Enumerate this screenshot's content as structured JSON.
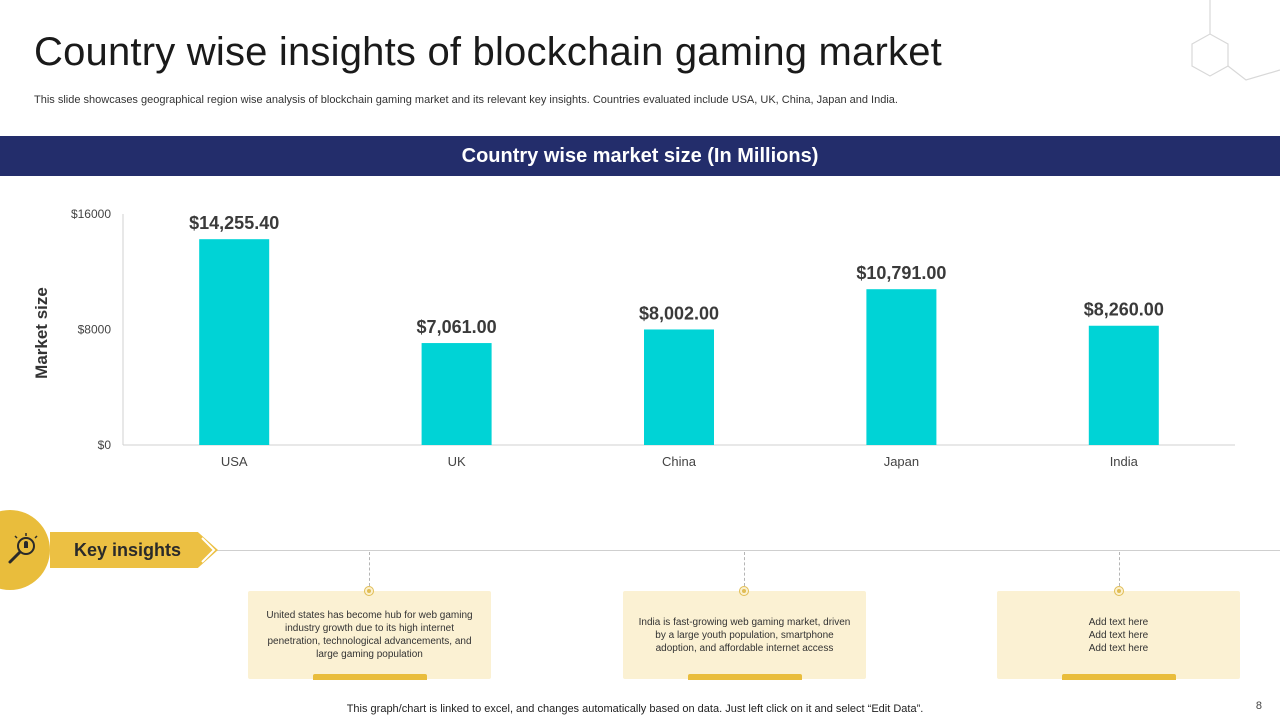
{
  "slide": {
    "title": "Country wise insights of blockchain gaming market",
    "subtitle": "This slide showcases geographical region wise analysis of blockchain gaming market and its relevant key insights. Countries evaluated include USA, UK, China, Japan and India.",
    "band_title": "Country wise market size (In Millions)",
    "footer_note": "This graph/chart is linked to excel,  and changes automatically based on data. Just left click on it and select “Edit Data”.",
    "page_number": "8"
  },
  "colors": {
    "band": "#232d6b",
    "bar": "#00d3d6",
    "accent": "#e9bd3c",
    "card": "#fbf1d3"
  },
  "chart_data": {
    "type": "bar",
    "title": "Country wise market size (In Millions)",
    "xlabel": "",
    "ylabel": "Market size",
    "categories": [
      "USA",
      "UK",
      "China",
      "Japan",
      "India"
    ],
    "values": [
      14255.4,
      7061.0,
      8002.0,
      10791.0,
      8260.0
    ],
    "data_labels": [
      "$14,255.40",
      "$7,061.00",
      "$8,002.00",
      "$10,791.00",
      "$8,260.00"
    ],
    "yticks": [
      0,
      8000,
      16000
    ],
    "ytick_labels": [
      "$0",
      "$8000",
      "$16000"
    ],
    "ylim": [
      0,
      16000
    ],
    "grid": false,
    "legend": "none"
  },
  "insights": {
    "heading": "Key insights",
    "icon": "lightbulb-magnifier-icon",
    "cards": [
      {
        "text": "United states has become hub for web gaming industry growth due to its high internet penetration, technological advancements, and large gaming population"
      },
      {
        "text": "India is fast-growing web gaming market, driven by a large youth population, smartphone adoption, and affordable internet access"
      },
      {
        "text": "Add text here\nAdd text here\nAdd text here"
      }
    ]
  }
}
